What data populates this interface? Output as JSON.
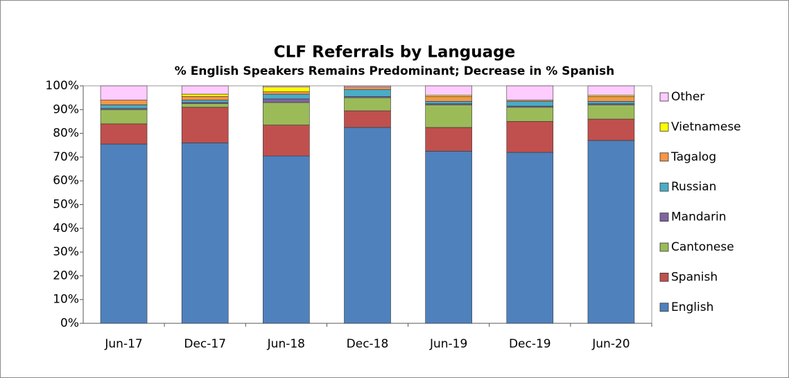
{
  "chart_data": {
    "type": "stacked_bar",
    "title": "CLF Referrals by Language",
    "subtitle": "% English Speakers Remains Predominant; Decrease in % Spanish",
    "categories": [
      "Jun-17",
      "Dec-17",
      "Jun-18",
      "Dec-18",
      "Jun-19",
      "Dec-19",
      "Jun-20"
    ],
    "series": [
      {
        "name": "English",
        "color": "#4f81bd",
        "values": [
          75.5,
          76,
          70.5,
          82.5,
          72.5,
          72,
          77
        ]
      },
      {
        "name": "Spanish",
        "color": "#c0504d",
        "values": [
          8.5,
          15,
          13,
          7,
          10,
          13,
          9
        ]
      },
      {
        "name": "Cantonese",
        "color": "#9bbb59",
        "values": [
          6,
          1.5,
          9.5,
          5.5,
          9.5,
          6,
          6
        ]
      },
      {
        "name": "Mandarin",
        "color": "#8064a2",
        "values": [
          0.5,
          0.5,
          1.5,
          0.5,
          0.5,
          0.5,
          0.5
        ]
      },
      {
        "name": "Russian",
        "color": "#4bacc6",
        "values": [
          1.5,
          1,
          2,
          3,
          1,
          2,
          1
        ]
      },
      {
        "name": "Tagalog",
        "color": "#f79646",
        "values": [
          2,
          1.5,
          1,
          1,
          2,
          0.5,
          2
        ]
      },
      {
        "name": "Vietnamese",
        "color": "#ffff00",
        "values": [
          0,
          1,
          2,
          0,
          0.5,
          0,
          0.5
        ]
      },
      {
        "name": "Other",
        "color": "#ffccff",
        "values": [
          6,
          3.5,
          0.5,
          0.5,
          4,
          6,
          4
        ]
      }
    ],
    "ylim": [
      0,
      100
    ],
    "yticks": [
      {
        "value": 0,
        "label": "0%"
      },
      {
        "value": 10,
        "label": "10%"
      },
      {
        "value": 20,
        "label": "20%"
      },
      {
        "value": 30,
        "label": "30%"
      },
      {
        "value": 40,
        "label": "40%"
      },
      {
        "value": 50,
        "label": "50%"
      },
      {
        "value": 60,
        "label": "60%"
      },
      {
        "value": 70,
        "label": "70%"
      },
      {
        "value": 80,
        "label": "80%"
      },
      {
        "value": 90,
        "label": "90%"
      },
      {
        "value": 100,
        "label": "100%"
      }
    ],
    "legend": "right",
    "grid": false
  }
}
